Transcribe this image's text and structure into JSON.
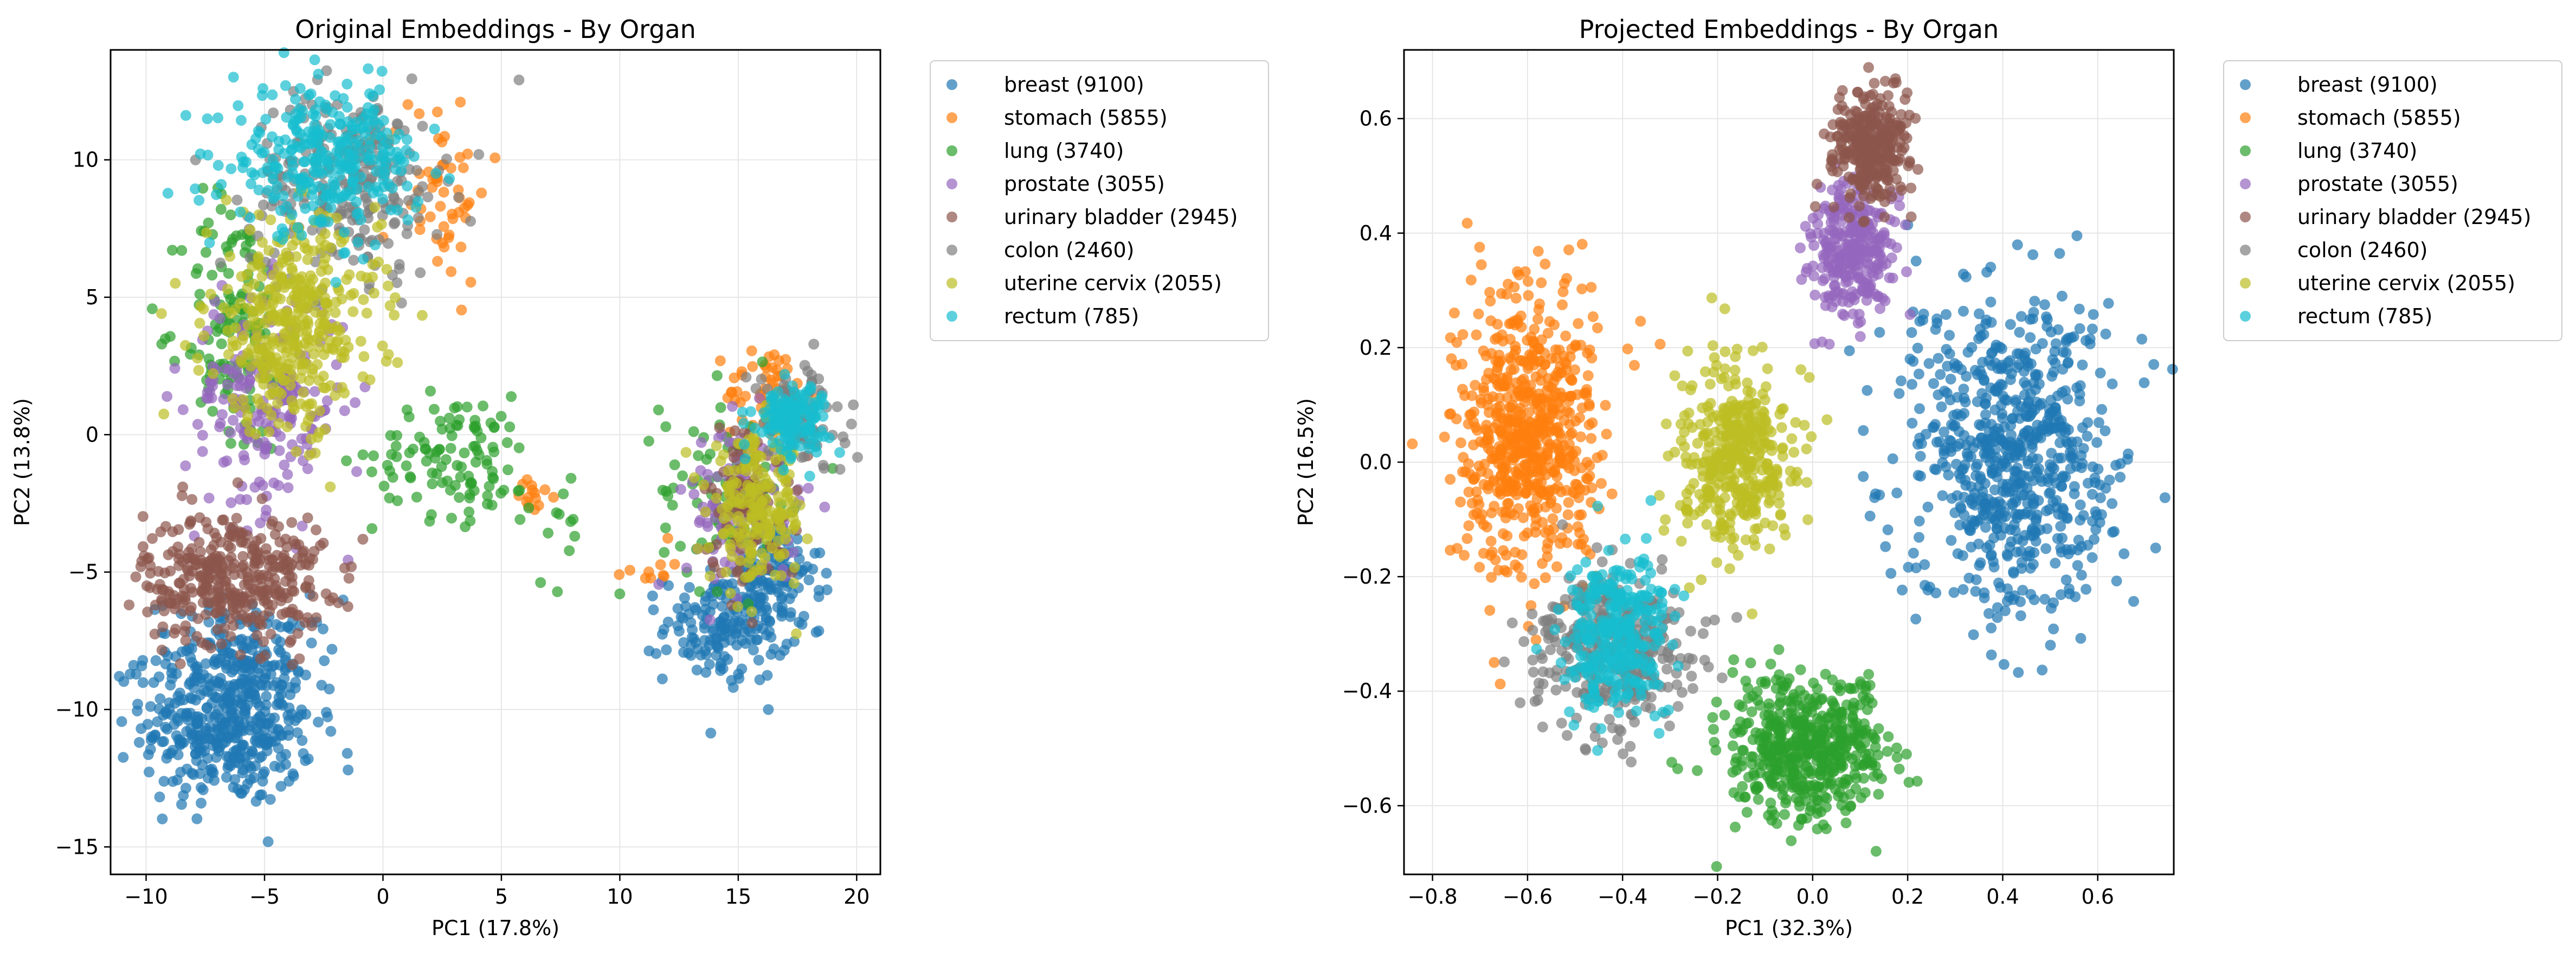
{
  "chart_data": [
    {
      "type": "scatter",
      "title": "Original Embeddings - By Organ",
      "xlabel": "PC1 (17.8%)",
      "ylabel": "PC2 (13.8%)",
      "xlim": [
        -11.5,
        21
      ],
      "ylim": [
        -16,
        14
      ],
      "xticks": [
        -10,
        -5,
        0,
        5,
        10,
        15,
        20
      ],
      "yticks": [
        -15,
        -10,
        -5,
        0,
        5,
        10
      ],
      "grid": true,
      "legend_position": "outside-right",
      "series": [
        {
          "name": "breast (9100)",
          "color": "#1f77b4",
          "clusters": [
            {
              "cx": -6.5,
              "cy": -10.5,
              "sx": 1.8,
              "sy": 1.5,
              "n": 420
            },
            {
              "cx": -6.0,
              "cy": -8.0,
              "sx": 2.0,
              "sy": 1.0,
              "n": 120
            },
            {
              "cx": 14.5,
              "cy": -7.0,
              "sx": 1.3,
              "sy": 1.0,
              "n": 170
            },
            {
              "cx": 16.5,
              "cy": -5.0,
              "sx": 1.0,
              "sy": 1.0,
              "n": 110
            }
          ]
        },
        {
          "name": "stomach (5855)",
          "color": "#ff7f0e",
          "clusters": [
            {
              "cx": 2.3,
              "cy": 9.0,
              "sx": 1.1,
              "sy": 1.7,
              "n": 55
            },
            {
              "cx": 6.5,
              "cy": -2.2,
              "sx": 0.4,
              "sy": 0.5,
              "n": 14
            },
            {
              "cx": 11.2,
              "cy": -4.8,
              "sx": 0.5,
              "sy": 0.3,
              "n": 10
            },
            {
              "cx": 16.3,
              "cy": 1.5,
              "sx": 0.9,
              "sy": 0.9,
              "n": 60
            }
          ]
        },
        {
          "name": "lung (3740)",
          "color": "#2ca02c",
          "clusters": [
            {
              "cx": -6.3,
              "cy": 4.0,
              "sx": 1.1,
              "sy": 2.4,
              "n": 130
            },
            {
              "cx": 3.0,
              "cy": -0.8,
              "sx": 1.7,
              "sy": 1.1,
              "n": 110
            },
            {
              "cx": 7.5,
              "cy": -3.0,
              "sx": 1.0,
              "sy": 1.2,
              "n": 14
            },
            {
              "cx": 14.5,
              "cy": -2.0,
              "sx": 1.4,
              "sy": 1.8,
              "n": 80
            }
          ]
        },
        {
          "name": "prostate (3055)",
          "color": "#9467bd",
          "clusters": [
            {
              "cx": -5.0,
              "cy": 1.2,
              "sx": 1.7,
              "sy": 2.0,
              "n": 200
            },
            {
              "cx": 15.2,
              "cy": -2.5,
              "sx": 1.2,
              "sy": 1.6,
              "n": 110
            }
          ]
        },
        {
          "name": "urinary bladder (2945)",
          "color": "#8c564b",
          "clusters": [
            {
              "cx": -6.3,
              "cy": -5.2,
              "sx": 1.9,
              "sy": 1.2,
              "n": 380
            },
            {
              "cx": 15.5,
              "cy": -2.5,
              "sx": 1.0,
              "sy": 1.5,
              "n": 90
            }
          ]
        },
        {
          "name": "colon (2460)",
          "color": "#7f7f7f",
          "clusters": [
            {
              "cx": -1.5,
              "cy": 9.2,
              "sx": 2.0,
              "sy": 1.7,
              "n": 260
            },
            {
              "cx": 17.5,
              "cy": 0.5,
              "sx": 1.0,
              "sy": 1.0,
              "n": 100
            }
          ]
        },
        {
          "name": "uterine cervix (2055)",
          "color": "#bcbd22",
          "clusters": [
            {
              "cx": -3.8,
              "cy": 4.0,
              "sx": 1.8,
              "sy": 1.9,
              "n": 380
            },
            {
              "cx": 15.8,
              "cy": -2.8,
              "sx": 1.0,
              "sy": 1.3,
              "n": 200
            }
          ]
        },
        {
          "name": "rectum (785)",
          "color": "#17becf",
          "clusters": [
            {
              "cx": -2.4,
              "cy": 10.0,
              "sx": 2.0,
              "sy": 1.3,
              "n": 300
            },
            {
              "cx": 17.2,
              "cy": 0.6,
              "sx": 0.8,
              "sy": 0.6,
              "n": 140
            }
          ]
        }
      ]
    },
    {
      "type": "scatter",
      "title": "Projected Embeddings - By Organ",
      "xlabel": "PC1 (32.3%)",
      "ylabel": "PC2 (16.5%)",
      "xlim": [
        -0.86,
        0.76
      ],
      "ylim": [
        -0.72,
        0.72
      ],
      "xticks": [
        -0.8,
        -0.6,
        -0.4,
        -0.2,
        0.0,
        0.2,
        0.4,
        0.6
      ],
      "xticklabels": [
        "−0.8",
        "−0.6",
        "−0.4",
        "−0.2",
        "0.0",
        "0.2",
        "0.4",
        "0.6"
      ],
      "yticks": [
        -0.6,
        -0.4,
        -0.2,
        0.0,
        0.2,
        0.4,
        0.6
      ],
      "yticklabels": [
        "−0.6",
        "−0.4",
        "−0.2",
        "0.0",
        "0.2",
        "0.4",
        "0.6"
      ],
      "grid": true,
      "legend_position": "outside-right",
      "series": [
        {
          "name": "breast (9100)",
          "color": "#1f77b4",
          "clusters": [
            {
              "cx": 0.42,
              "cy": 0.02,
              "sx": 0.11,
              "sy": 0.14,
              "n": 700
            }
          ]
        },
        {
          "name": "stomach (5855)",
          "color": "#ff7f0e",
          "clusters": [
            {
              "cx": -0.6,
              "cy": 0.05,
              "sx": 0.07,
              "sy": 0.12,
              "n": 650
            }
          ]
        },
        {
          "name": "lung (3740)",
          "color": "#2ca02c",
          "clusters": [
            {
              "cx": -0.01,
              "cy": -0.5,
              "sx": 0.08,
              "sy": 0.06,
              "n": 520
            }
          ]
        },
        {
          "name": "prostate (3055)",
          "color": "#9467bd",
          "clusters": [
            {
              "cx": 0.08,
              "cy": 0.37,
              "sx": 0.045,
              "sy": 0.06,
              "n": 300
            }
          ]
        },
        {
          "name": "urinary bladder (2945)",
          "color": "#8c564b",
          "clusters": [
            {
              "cx": 0.12,
              "cy": 0.55,
              "sx": 0.04,
              "sy": 0.05,
              "n": 320
            }
          ]
        },
        {
          "name": "colon (2460)",
          "color": "#7f7f7f",
          "clusters": [
            {
              "cx": -0.42,
              "cy": -0.33,
              "sx": 0.08,
              "sy": 0.07,
              "n": 380
            }
          ]
        },
        {
          "name": "uterine cervix (2055)",
          "color": "#bcbd22",
          "clusters": [
            {
              "cx": -0.16,
              "cy": 0.0,
              "sx": 0.06,
              "sy": 0.08,
              "n": 400
            }
          ]
        },
        {
          "name": "rectum (785)",
          "color": "#17becf",
          "clusters": [
            {
              "cx": -0.41,
              "cy": -0.3,
              "sx": 0.06,
              "sy": 0.07,
              "n": 300
            }
          ]
        }
      ]
    }
  ]
}
